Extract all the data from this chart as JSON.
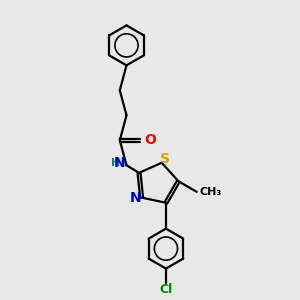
{
  "background_color": "#e8e8e8",
  "bond_color": "#000000",
  "atom_colors": {
    "N": "#0000cc",
    "O": "#ff0000",
    "S": "#ccaa00",
    "Cl": "#008800",
    "H": "#008888",
    "C": "#000000"
  },
  "figsize": [
    3.0,
    3.0
  ],
  "dpi": 100,
  "lw": 1.6
}
